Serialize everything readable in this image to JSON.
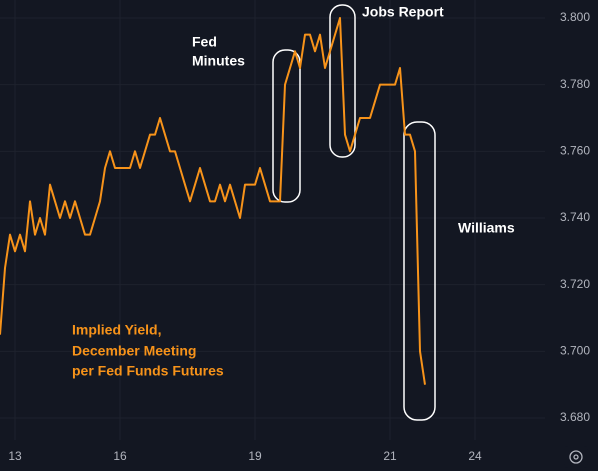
{
  "chart_data": {
    "type": "line",
    "annotations": [
      {
        "lines": [
          "Fed",
          "Minutes"
        ]
      },
      {
        "lines": [
          "Jobs Report"
        ]
      },
      {
        "lines": [
          "Williams"
        ]
      }
    ],
    "legend_text": [
      "Implied Yield,",
      "December Meeting",
      "per Fed Funds Futures"
    ],
    "categories": [
      null,
      null,
      null,
      "13",
      null,
      null,
      null,
      null,
      null,
      null,
      null,
      null,
      null,
      null,
      null,
      null,
      null,
      null,
      null,
      null,
      null,
      null,
      null,
      null,
      "16",
      null,
      null,
      null,
      null,
      null,
      null,
      null,
      null,
      null,
      null,
      null,
      null,
      null,
      null,
      null,
      null,
      null,
      null,
      null,
      null,
      null,
      null,
      null,
      null,
      null,
      null,
      "19",
      null,
      null,
      null,
      null,
      null,
      null,
      null,
      null,
      null,
      null,
      null,
      null,
      null,
      null,
      null,
      null,
      null,
      null,
      null,
      null,
      null,
      null,
      null,
      null,
      null,
      null,
      "21",
      null,
      null,
      null,
      null,
      null,
      null,
      null,
      null,
      null,
      null,
      null,
      null,
      null,
      null,
      null,
      null,
      "24"
    ],
    "series": [
      {
        "name": "Implied Yield, December Meeting per Fed Funds Futures",
        "color": "#f7931a",
        "values": [
          3.705,
          3.725,
          3.735,
          3.73,
          3.735,
          3.73,
          3.745,
          3.735,
          3.74,
          3.735,
          3.75,
          3.745,
          3.74,
          3.745,
          3.74,
          3.745,
          3.74,
          3.735,
          3.735,
          3.74,
          3.745,
          3.755,
          3.76,
          3.755,
          3.755,
          3.755,
          3.755,
          3.76,
          3.755,
          3.76,
          3.765,
          3.765,
          3.77,
          3.765,
          3.76,
          3.76,
          3.755,
          3.75,
          3.745,
          3.75,
          3.755,
          3.75,
          3.745,
          3.745,
          3.75,
          3.745,
          3.75,
          3.745,
          3.74,
          3.75,
          3.75,
          3.75,
          3.755,
          3.75,
          3.745,
          3.745,
          3.745,
          3.78,
          3.785,
          3.79,
          3.785,
          3.795,
          3.795,
          3.79,
          3.795,
          3.785,
          3.79,
          3.795,
          3.8,
          3.765,
          3.76,
          3.765,
          3.77,
          3.77,
          3.77,
          3.775,
          3.78,
          3.78,
          3.78,
          3.78,
          3.785,
          3.765,
          3.765,
          3.76,
          3.7,
          3.69,
          null,
          null,
          null,
          null,
          null,
          null,
          null,
          null,
          null,
          null
        ]
      }
    ],
    "ylim": [
      3.6734,
      3.8054
    ],
    "yticks": [
      {
        "value": 3.68,
        "label": "3.680"
      },
      {
        "value": 3.7,
        "label": "3.700"
      },
      {
        "value": 3.72,
        "label": "3.720"
      },
      {
        "value": 3.74,
        "label": "3.740"
      },
      {
        "value": 3.76,
        "label": "3.760"
      },
      {
        "value": 3.78,
        "label": "3.780"
      },
      {
        "value": 3.8,
        "label": "3.800"
      }
    ],
    "grid": true
  }
}
